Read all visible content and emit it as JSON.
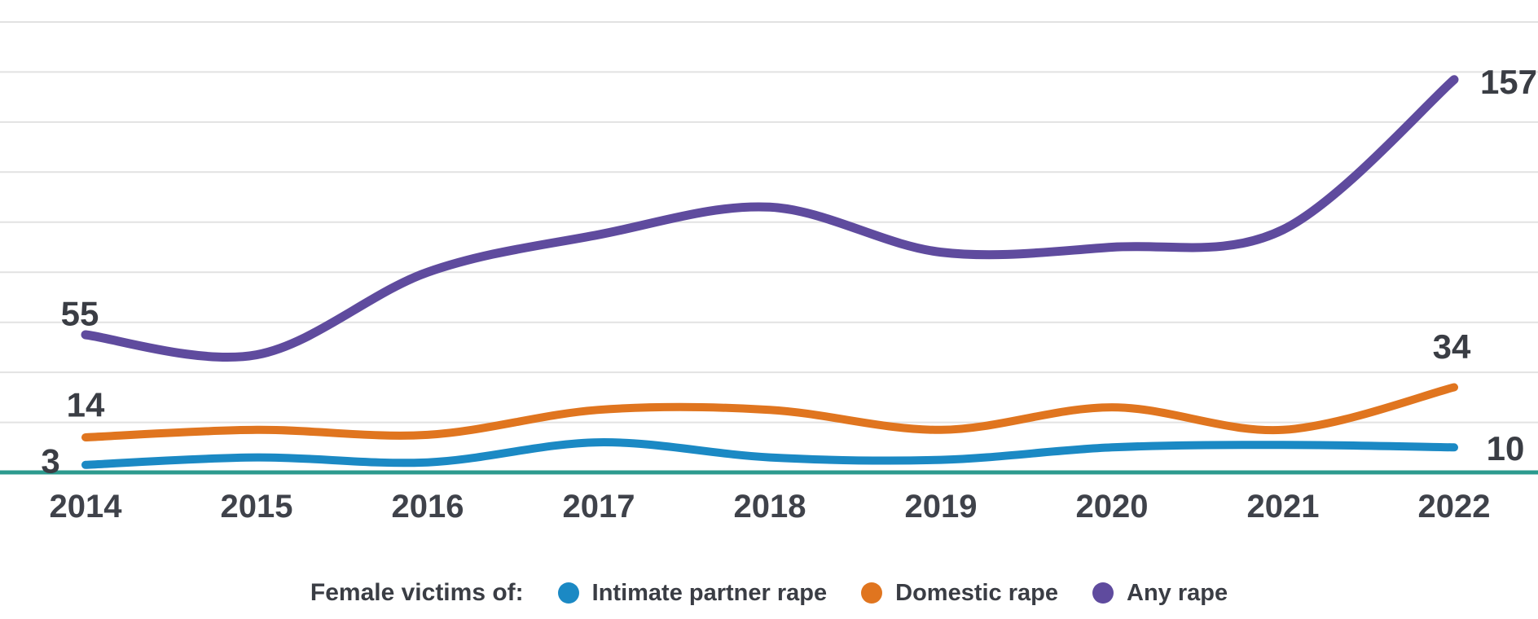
{
  "chart_data": {
    "type": "line",
    "title": "",
    "xlabel": "",
    "ylabel": "",
    "categories": [
      "2014",
      "2015",
      "2016",
      "2017",
      "2018",
      "2019",
      "2020",
      "2021",
      "2022"
    ],
    "series": [
      {
        "name": "Intimate partner rape",
        "color": "#1b89c4",
        "values": [
          3,
          6,
          4,
          12,
          6,
          5,
          10,
          11,
          10
        ],
        "start_label": "3",
        "end_label": "10"
      },
      {
        "name": "Domestic rape",
        "color": "#e0751f",
        "values": [
          14,
          17,
          15,
          25,
          25,
          17,
          26,
          17,
          34
        ],
        "start_label": "14",
        "end_label": "34"
      },
      {
        "name": "Any rape",
        "color": "#5f4b9e",
        "values": [
          55,
          47,
          80,
          95,
          106,
          88,
          90,
          97,
          157
        ],
        "start_label": "55",
        "end_label": "157"
      }
    ],
    "ylim": [
      0,
      183
    ],
    "gridline_values": [
      20,
      40,
      60,
      80,
      100,
      120,
      140,
      160,
      180
    ],
    "grid_on": true,
    "baseline_color": "#2c9a8e",
    "curve": "smooth",
    "legend_position": "bottom"
  },
  "legend": {
    "prefix": "Female victims of:",
    "items": [
      {
        "label": "Intimate partner rape",
        "color": "#1b89c4"
      },
      {
        "label": "Domestic rape",
        "color": "#e0751f"
      },
      {
        "label": "Any rape",
        "color": "#5f4b9e"
      }
    ]
  }
}
